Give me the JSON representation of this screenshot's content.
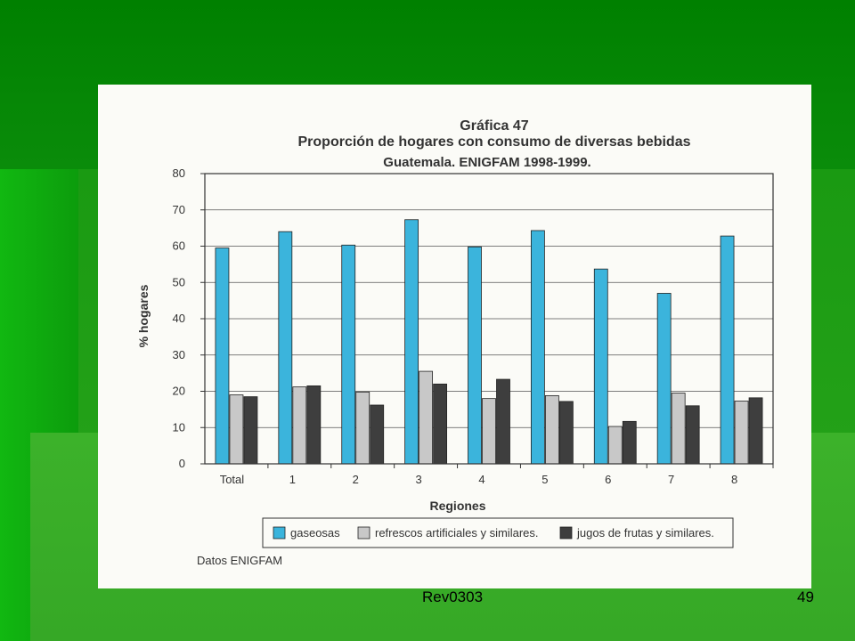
{
  "slide": {
    "footer_left": "Rev0303",
    "page_number": "49"
  },
  "chart_data": {
    "type": "bar",
    "title": "Gráfica 47",
    "subtitle": "Proporción de hogares con consumo de diversas bebidas",
    "subtitle2": "Guatemala.  ENIGFAM 1998-1999.",
    "xlabel": "Regiones",
    "ylabel": "% hogares",
    "ylim": [
      0,
      80
    ],
    "yticks": [
      0,
      10,
      20,
      30,
      40,
      50,
      60,
      70,
      80
    ],
    "grid": true,
    "legend_position": "bottom",
    "categories": [
      "Total",
      "1",
      "2",
      "3",
      "4",
      "5",
      "6",
      "7",
      "8"
    ],
    "series": [
      {
        "name": "gaseosas",
        "color": "#3bb4dc",
        "values": [
          59.5,
          64,
          60.3,
          67.3,
          59.8,
          64.3,
          53.7,
          47,
          62.8
        ]
      },
      {
        "name": "refrescos artificiales y similares.",
        "color": "#c8c8c8",
        "values": [
          19,
          21.2,
          19.8,
          25.5,
          18,
          18.8,
          10.3,
          19.5,
          17.3
        ]
      },
      {
        "name": "jugos de frutas y similares.",
        "color": "#3e3e3e",
        "values": [
          18.5,
          21.5,
          16.2,
          22,
          23.3,
          17.2,
          11.7,
          16,
          18.2
        ]
      }
    ],
    "source_note": "Datos ENIGFAM"
  }
}
